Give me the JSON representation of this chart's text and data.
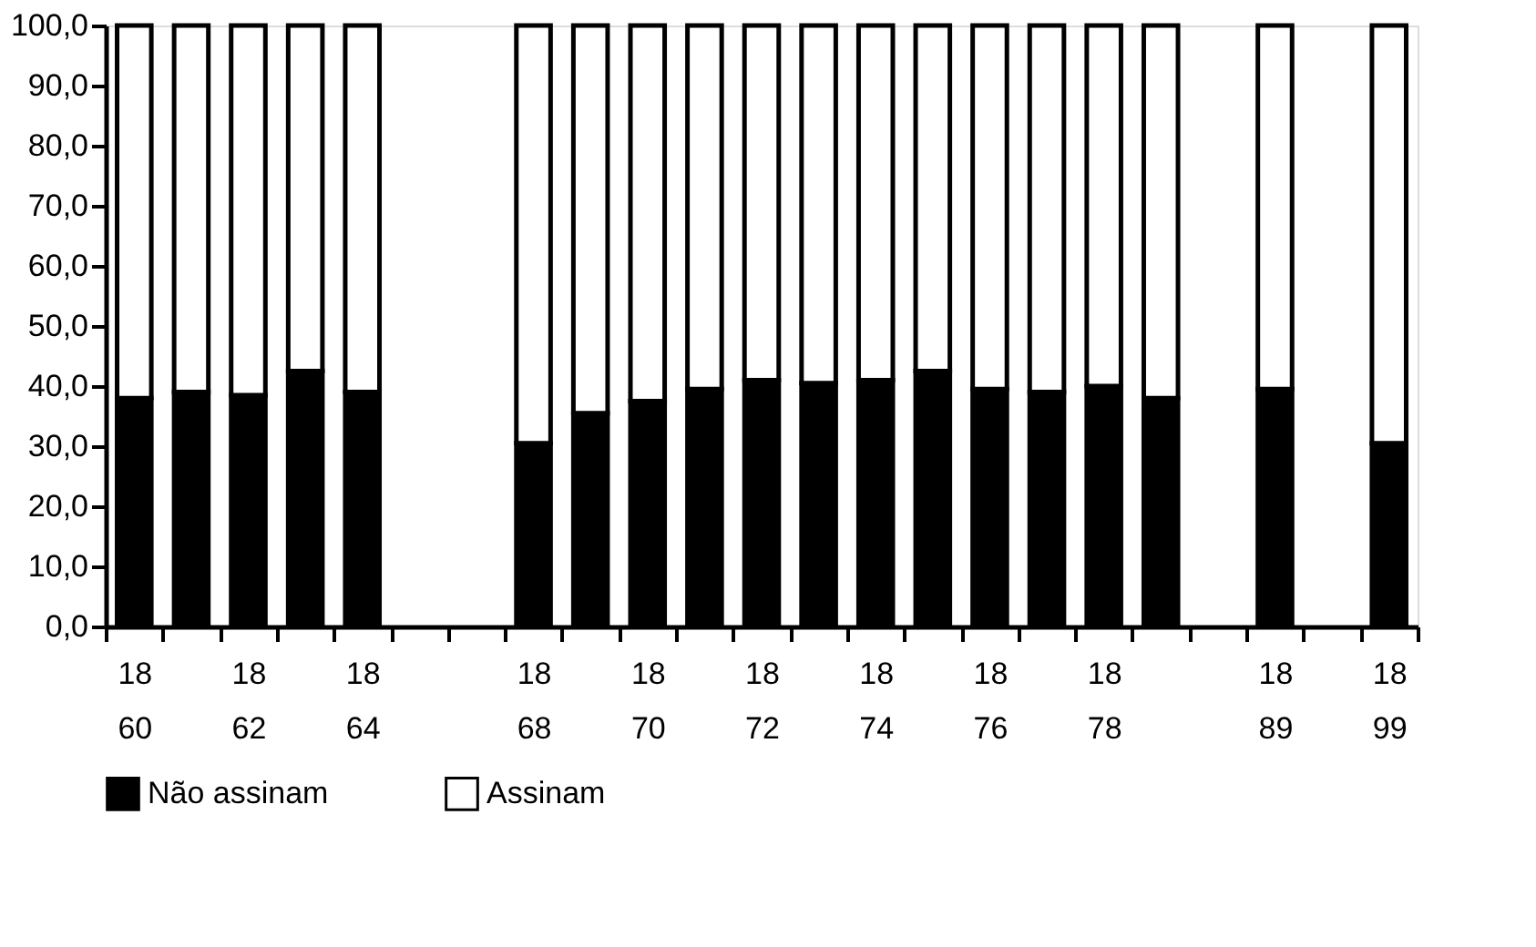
{
  "chart_data": {
    "type": "bar",
    "stacked": true,
    "categories": [
      "1860",
      null,
      "1862",
      null,
      "1864",
      null,
      null,
      "1868",
      null,
      "1870",
      null,
      "1872",
      null,
      "1874",
      null,
      "1876",
      null,
      "1878",
      null,
      null,
      "1889",
      null,
      "1899"
    ],
    "series": [
      {
        "name": "Não assinam",
        "color": "#000000",
        "values": [
          38,
          39,
          38.5,
          42.5,
          39,
          null,
          null,
          30.5,
          35.5,
          37.5,
          39.5,
          41,
          40.5,
          41,
          42.5,
          39.5,
          39,
          40,
          38,
          null,
          39.5,
          null,
          30.5
        ]
      },
      {
        "name": "Assinam",
        "color": "#ffffff",
        "values": [
          62,
          61,
          61.5,
          57.5,
          61,
          null,
          null,
          69.5,
          64.5,
          62.5,
          60.5,
          59,
          59.5,
          59,
          57.5,
          60.5,
          61,
          60,
          62,
          null,
          60.5,
          null,
          69.5
        ]
      }
    ],
    "ylim": [
      0,
      100
    ],
    "yticks": [
      {
        "value": 0,
        "label": "0,0"
      },
      {
        "value": 10,
        "label": "10,0"
      },
      {
        "value": 20,
        "label": "20,0"
      },
      {
        "value": 30,
        "label": "30,0"
      },
      {
        "value": 40,
        "label": "40,0"
      },
      {
        "value": 50,
        "label": "50,0"
      },
      {
        "value": 60,
        "label": "60,0"
      },
      {
        "value": 70,
        "label": "70,0"
      },
      {
        "value": 80,
        "label": "80,0"
      },
      {
        "value": 90,
        "label": "90,0"
      },
      {
        "value": 100,
        "label": "100,0"
      }
    ],
    "grid": false,
    "legend": "bottom"
  }
}
